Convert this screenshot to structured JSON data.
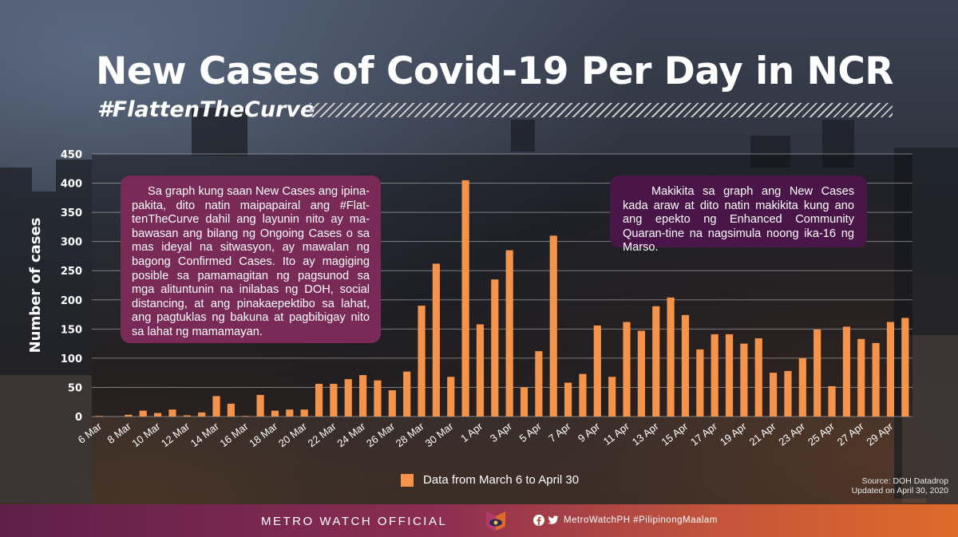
{
  "header": {
    "title": "New Cases of Covid-19 Per Day in NCR",
    "hashtag": "#FlattenTheCurve"
  },
  "notes": {
    "left": "Sa graph kung saan New Cases ang ipina-pakita, dito natin maipapairal ang #Flat-tenTheCurve dahil ang layunin nito ay ma-bawasan ang bilang ng Ongoing Cases o sa mas ideyal na sitwasyon, ay mawalan ng bagong Confirmed Cases. Ito ay magiging posible sa pamamagitan ng pagsunod sa mga alituntunin na inilabas ng DOH, social distancing, at ang pinakaepektibo sa lahat, ang pagtuklas ng bakuna at pagbibigay nito sa lahat ng mamamayan.",
    "right": "Makikita sa graph ang New Cases kada araw at dito natin makikita kung ano ang epekto ng Enhanced Community Quaran-tine na nagsimula noong ika-16 ng Marso."
  },
  "legend": {
    "label": "Data from March 6 to April 30",
    "color": "#f5934a"
  },
  "source": {
    "line1": "Source: DOH Datadrop",
    "line2": "Updated on April 30, 2020"
  },
  "footer": {
    "brand": "METRO WATCH OFFICIAL",
    "social": "MetroWatchPH #PilipinongMaalam",
    "icons": [
      "facebook-icon",
      "twitter-icon"
    ],
    "logo_icon": "eye-logo-icon"
  },
  "chart_data": {
    "type": "bar",
    "ylabel": "Number of cases",
    "ylim": [
      0,
      450
    ],
    "yticks": [
      0,
      50,
      100,
      150,
      200,
      250,
      300,
      350,
      400,
      450
    ],
    "grid": true,
    "bar_color": "#f5934a",
    "categories": [
      "6 Mar",
      "7 Mar",
      "8 Mar",
      "9 Mar",
      "10 Mar",
      "11 Mar",
      "12 Mar",
      "13 Mar",
      "14 Mar",
      "15 Mar",
      "16 Mar",
      "17 Mar",
      "18 Mar",
      "19 Mar",
      "20 Mar",
      "21 Mar",
      "22 Mar",
      "23 Mar",
      "24 Mar",
      "25 Mar",
      "26 Mar",
      "27 Mar",
      "28 Mar",
      "29 Mar",
      "30 Mar",
      "31 Mar",
      "1 Apr",
      "2 Apr",
      "3 Apr",
      "4 Apr",
      "5 Apr",
      "6 Apr",
      "7 Apr",
      "8 Apr",
      "9 Apr",
      "10 Apr",
      "11 Apr",
      "12 Apr",
      "13 Apr",
      "14 Apr",
      "15 Apr",
      "16 Apr",
      "17 Apr",
      "18 Apr",
      "19 Apr",
      "20 Apr",
      "21 Apr",
      "22 Apr",
      "23 Apr",
      "24 Apr",
      "25 Apr",
      "26 Apr",
      "27 Apr",
      "28 Apr",
      "29 Apr",
      "30 Apr"
    ],
    "xtick_labels": [
      "6 Mar",
      "8 Mar",
      "10 Mar",
      "12 Mar",
      "14 Mar",
      "16 Mar",
      "18 Mar",
      "20 Mar",
      "22 Mar",
      "24 Mar",
      "26 Mar",
      "28 Mar",
      "30 Mar",
      "1 Apr",
      "3 Apr",
      "5 Apr",
      "7 Apr",
      "9 Apr",
      "11 Apr",
      "13 Apr",
      "15 Apr",
      "17 Apr",
      "19 Apr",
      "21 Apr",
      "23 Apr",
      "25 Apr",
      "27 Apr",
      "29 Apr"
    ],
    "values": [
      1,
      0,
      3,
      10,
      6,
      12,
      2,
      7,
      35,
      22,
      1,
      37,
      10,
      12,
      12,
      56,
      56,
      64,
      71,
      62,
      45,
      77,
      190,
      262,
      68,
      405,
      158,
      235,
      285,
      50,
      112,
      310,
      58,
      73,
      156,
      68,
      162,
      147,
      189,
      204,
      174,
      115,
      141,
      141,
      125,
      134,
      75,
      78,
      100,
      149,
      52,
      154,
      133,
      126,
      162,
      169
    ]
  }
}
